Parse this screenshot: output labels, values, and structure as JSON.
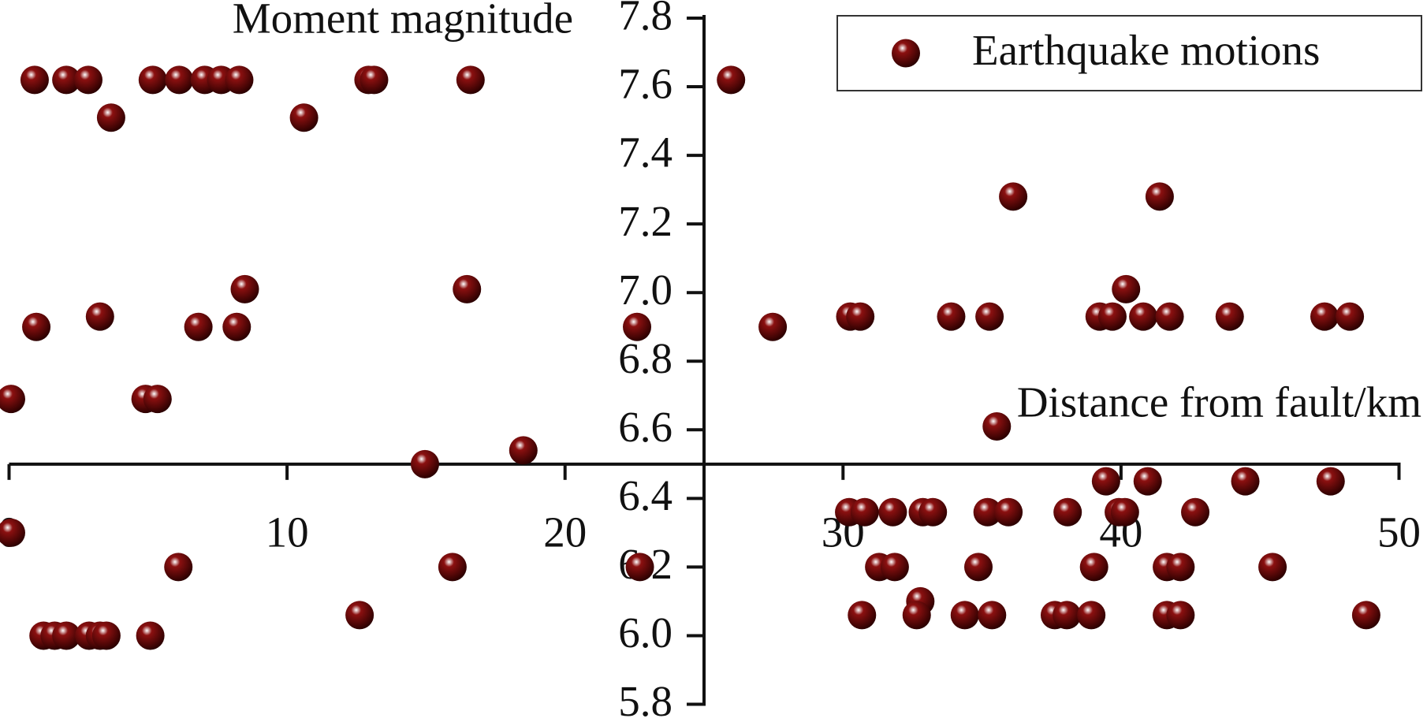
{
  "chart_data": {
    "type": "scatter",
    "x_label": "Distance from fault/km",
    "y_label": "Moment magnitude",
    "xlim": [
      0,
      50
    ],
    "ylim": [
      5.8,
      7.8
    ],
    "xticks": [
      0,
      10,
      20,
      30,
      40,
      50
    ],
    "yticks": [
      5.8,
      {
        "value": 6,
        "label": "6.0"
      },
      6.2,
      6.4,
      6.6,
      6.8,
      {
        "value": 7,
        "label": "7.0"
      },
      7.2,
      7.4,
      7.6,
      7.8
    ],
    "x_axis_crossing": 6.5,
    "y_axis_crossing": 25,
    "legend": "upper right",
    "x": [
      0.92,
      2.06,
      2.85,
      5.17,
      6.12,
      7.04,
      7.63,
      8.28,
      12.93,
      13.13,
      16.6,
      25.97,
      3.67,
      10.61,
      36.12,
      41.39,
      8.48,
      16.47,
      40.18,
      3.27,
      30.26,
      30.62,
      33.89,
      35.27,
      39.23,
      39.69,
      40.8,
      41.75,
      43.91,
      47.32,
      48.23,
      0.98,
      6.81,
      8.19,
      22.59,
      27.47,
      0.07,
      4.91,
      5.34,
      35.53,
      18.5,
      14.96,
      39.46,
      40.96,
      44.47,
      47.54,
      30.22,
      30.78,
      31.79,
      32.87,
      33.23,
      35.2,
      35.95,
      38.08,
      39.92,
      40.14,
      42.67,
      0.07,
      6.09,
      15.95,
      22.69,
      31.3,
      31.86,
      34.87,
      39.03,
      41.65,
      42.14,
      45.45,
      32.78,
      12.61,
      30.68,
      32.65,
      34.38,
      35.36,
      37.62,
      38.05,
      38.93,
      41.65,
      42.14,
      48.82,
      1.24,
      1.64,
      2.06,
      2.88,
      3.27,
      3.5,
      5.08
    ],
    "series": [
      {
        "name": "Earthquake motions",
        "color": "#8b1010",
        "values": [
          7.62,
          7.62,
          7.62,
          7.62,
          7.62,
          7.62,
          7.62,
          7.62,
          7.62,
          7.62,
          7.62,
          7.62,
          7.51,
          7.51,
          7.28,
          7.28,
          7.01,
          7.01,
          7.01,
          6.93,
          6.93,
          6.93,
          6.93,
          6.93,
          6.93,
          6.93,
          6.93,
          6.93,
          6.93,
          6.93,
          6.93,
          6.9,
          6.9,
          6.9,
          6.9,
          6.9,
          6.69,
          6.69,
          6.69,
          6.61,
          6.54,
          6.5,
          6.45,
          6.45,
          6.45,
          6.45,
          6.36,
          6.36,
          6.36,
          6.36,
          6.36,
          6.36,
          6.36,
          6.36,
          6.36,
          6.36,
          6.36,
          6.3,
          6.2,
          6.2,
          6.2,
          6.2,
          6.2,
          6.2,
          6.2,
          6.2,
          6.2,
          6.2,
          6.1,
          6.06,
          6.06,
          6.06,
          6.06,
          6.06,
          6.06,
          6.06,
          6.06,
          6.06,
          6.06,
          6.06,
          6,
          6,
          6,
          6,
          6,
          6,
          6
        ]
      }
    ]
  }
}
